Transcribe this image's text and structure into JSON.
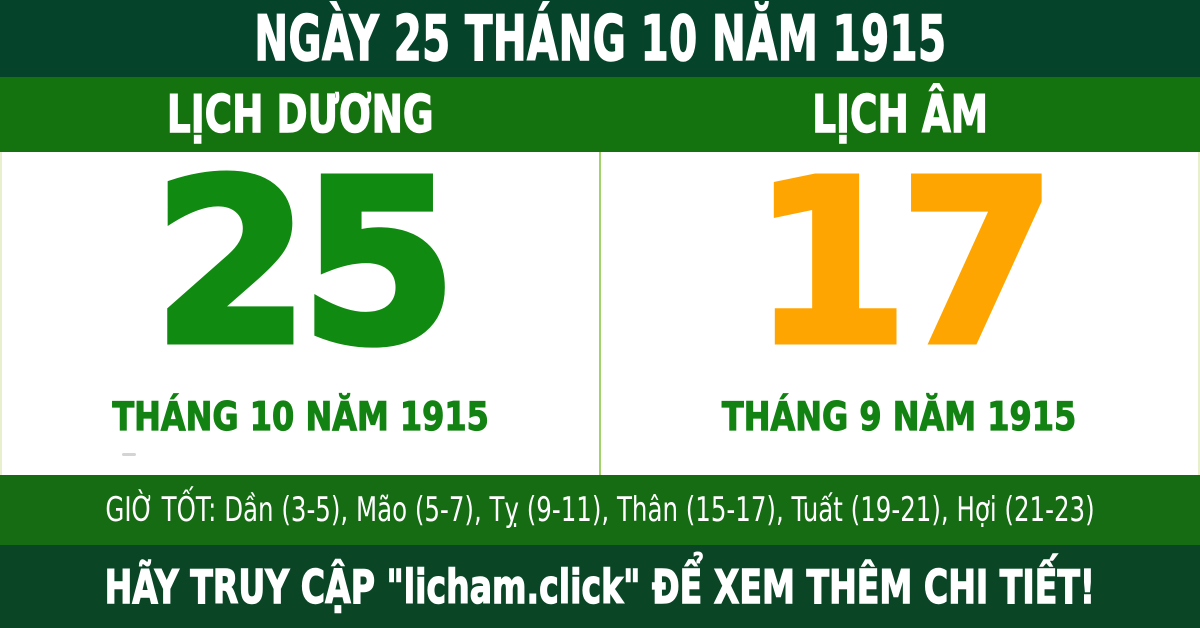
{
  "colors": {
    "header_bg": "#05432a",
    "bar_bg": "#15730f",
    "band_bg": "#156c13",
    "footer_bg": "#0a4626",
    "white": "#ffffff",
    "panel_edge": "#e7efcd",
    "divider": "#a2d36a",
    "solar_number": "#108a10",
    "lunar_number": "#ffa502",
    "month_label": "#128312",
    "text_white": "#ffffff"
  },
  "header": {
    "title": "NGÀY 25 THÁNG 10 NĂM 1915"
  },
  "columns": {
    "solar": {
      "heading": "LỊCH DƯƠNG",
      "day": "25",
      "month_year": "THÁNG 10 NĂM 1915"
    },
    "lunar": {
      "heading": "LỊCH ÂM",
      "day": "17",
      "month_year": "THÁNG 9 NĂM 1915"
    }
  },
  "good_hours": {
    "text": "GIỜ TỐT: Dần (3-5), Mão (5-7), Tỵ (9-11), Thân (15-17), Tuất (19-21), Hợi (21-23)"
  },
  "footer": {
    "text": "HÃY TRUY CẬP \"licham.click\" ĐỂ XEM THÊM CHI TIẾT!"
  }
}
